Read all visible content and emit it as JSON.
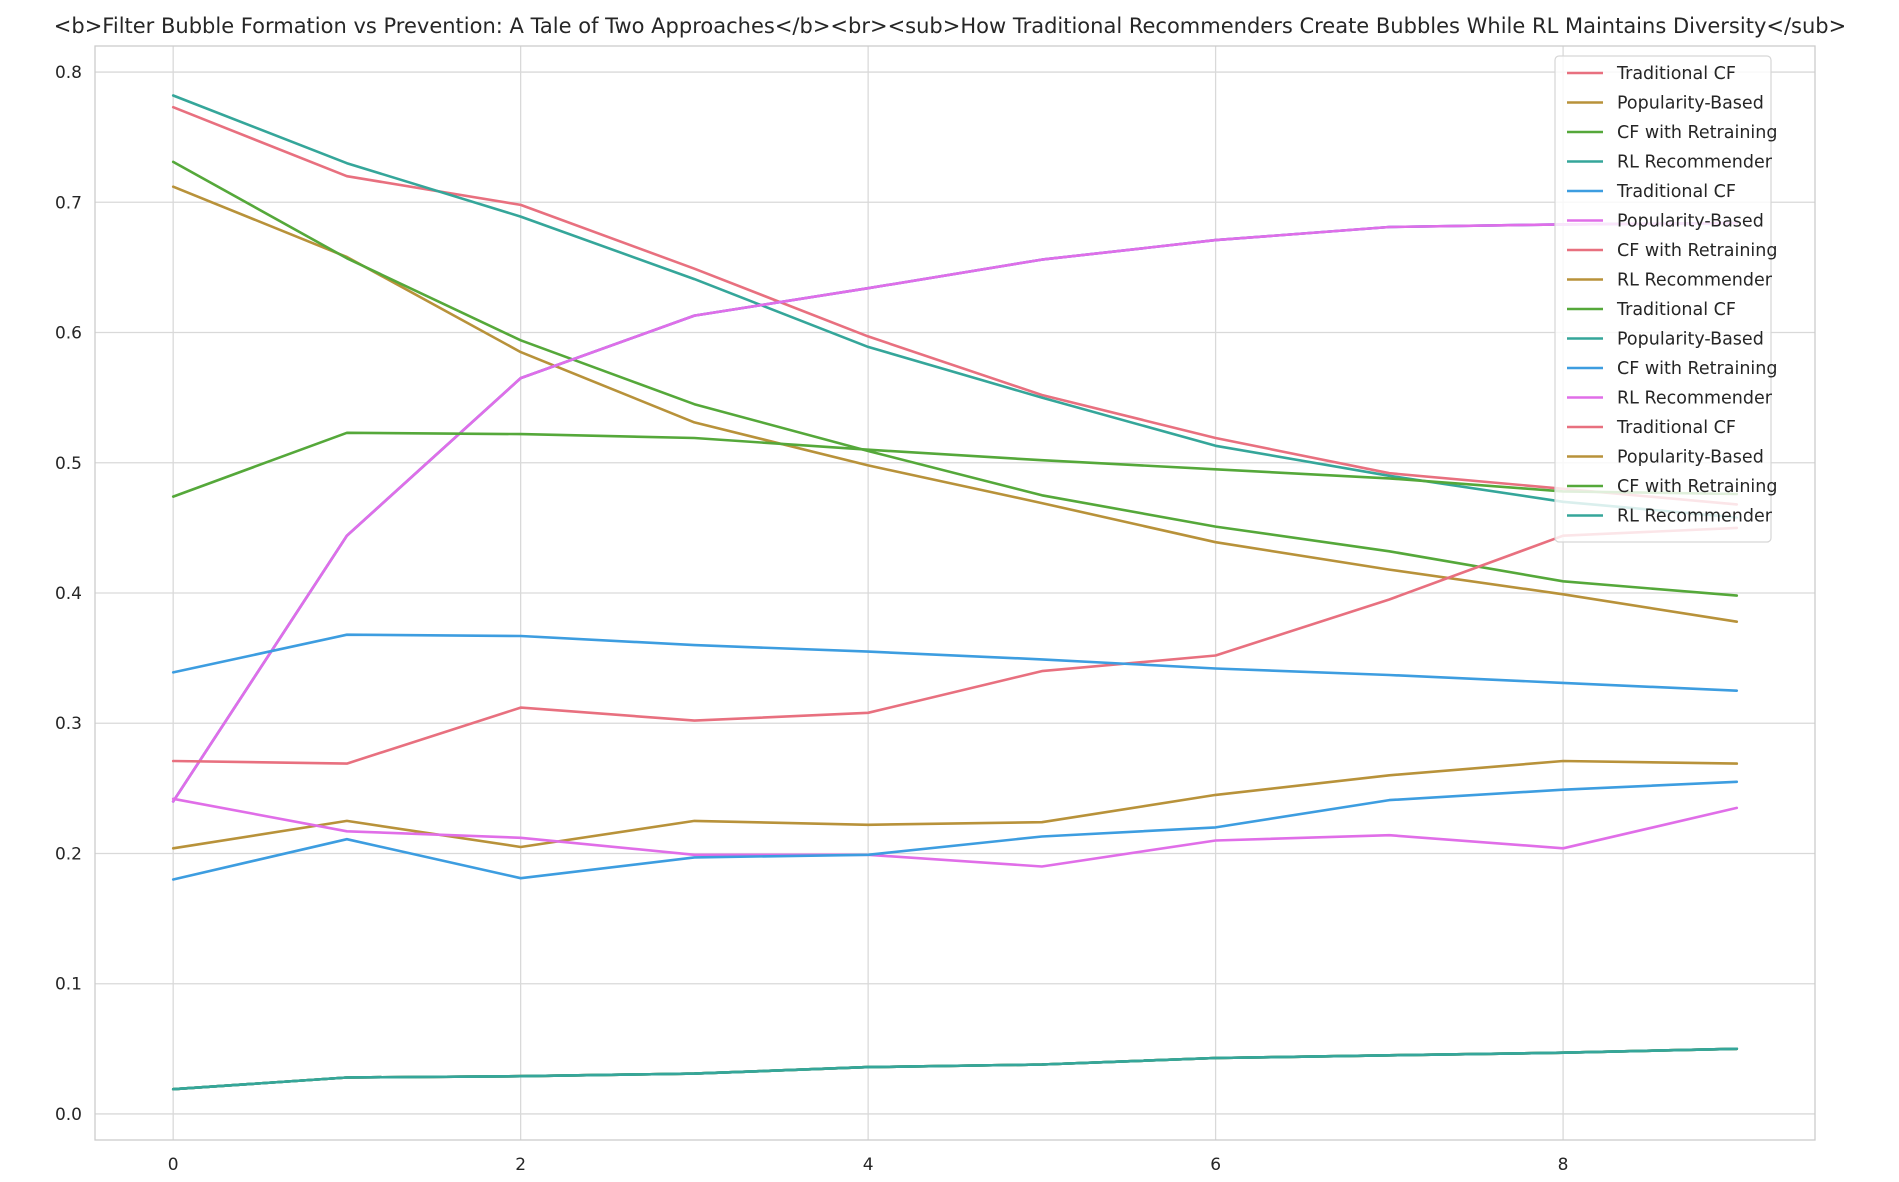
{
  "title": "<b>Filter Bubble Formation vs Prevention: A Tale of Two Approaches</b><br><sub>How Traditional Recommenders Create Bubbles While RL Maintains Diversity</sub>",
  "colors": {
    "red": "#e8707f",
    "olive": "#b8923a",
    "green": "#55a83a",
    "teal": "#35a69a",
    "blue": "#3d9de0",
    "magenta": "#e06ee8",
    "grid": "#d9d9d9",
    "frame": "#cccccc"
  },
  "chart_data": {
    "type": "line",
    "x": [
      0,
      1,
      2,
      3,
      4,
      5,
      6,
      7,
      8,
      9
    ],
    "xticks": [
      0,
      2,
      4,
      6,
      8
    ],
    "xtick_labels": [
      "0",
      "2",
      "4",
      "6",
      "8"
    ],
    "yticks": [
      0.0,
      0.1,
      0.2,
      0.3,
      0.4,
      0.5,
      0.6,
      0.7,
      0.8
    ],
    "ytick_labels": [
      "0.0",
      "0.1",
      "0.2",
      "0.3",
      "0.4",
      "0.5",
      "0.6",
      "0.7",
      "0.8"
    ],
    "xlim": [
      -0.45,
      9.45
    ],
    "ylim": [
      -0.02,
      0.82
    ],
    "grid": true,
    "legend_position": "top-right",
    "title": "<b>Filter Bubble Formation vs Prevention: A Tale of Two Approaches</b><br><sub>How Traditional Recommenders Create Bubbles While RL Maintains Diversity</sub>",
    "xlabel": "",
    "ylabel": "",
    "series": [
      {
        "name": "Traditional CF",
        "color": "red",
        "values": [
          0.773,
          0.72,
          0.698,
          0.649,
          0.597,
          0.552,
          0.519,
          0.492,
          0.48,
          0.468
        ]
      },
      {
        "name": "Popularity-Based",
        "color": "olive",
        "values": [
          0.712,
          0.658,
          0.585,
          0.531,
          0.498,
          0.469,
          0.439,
          0.418,
          0.399,
          0.378
        ]
      },
      {
        "name": "CF with Retraining",
        "color": "green",
        "values": [
          0.731,
          0.657,
          0.594,
          0.545,
          0.509,
          0.475,
          0.451,
          0.432,
          0.409,
          0.398
        ]
      },
      {
        "name": "RL Recommender",
        "color": "teal",
        "values": [
          0.782,
          0.73,
          0.689,
          0.641,
          0.589,
          0.55,
          0.513,
          0.49,
          0.47,
          0.458
        ]
      },
      {
        "name": "Traditional CF",
        "color": "blue",
        "values": [
          0.019,
          0.028,
          0.029,
          0.031,
          0.036,
          0.038,
          0.043,
          0.045,
          0.047,
          0.05
        ]
      },
      {
        "name": "Popularity-Based",
        "color": "magenta",
        "values": [
          0.24,
          0.444,
          0.565,
          0.613,
          0.634,
          0.656,
          0.671,
          0.681,
          0.683,
          0.684
        ]
      },
      {
        "name": "CF with Retraining",
        "color": "red",
        "values": [
          0.019,
          0.028,
          0.029,
          0.031,
          0.036,
          0.038,
          0.043,
          0.045,
          0.047,
          0.05
        ]
      },
      {
        "name": "RL Recommender",
        "color": "olive",
        "values": [
          0.019,
          0.028,
          0.029,
          0.031,
          0.036,
          0.038,
          0.043,
          0.045,
          0.047,
          0.05
        ]
      },
      {
        "name": "Traditional CF",
        "color": "green",
        "values": [
          0.019,
          0.028,
          0.029,
          0.031,
          0.036,
          0.038,
          0.043,
          0.045,
          0.047,
          0.05
        ]
      },
      {
        "name": "Popularity-Based",
        "color": "teal",
        "values": [
          0.019,
          0.028,
          0.029,
          0.031,
          0.036,
          0.038,
          0.043,
          0.045,
          0.047,
          0.05
        ]
      },
      {
        "name": "CF with Retraining",
        "color": "blue",
        "values": [
          0.24,
          0.444,
          0.565,
          0.613,
          0.634,
          0.656,
          0.671,
          0.681,
          0.683,
          0.684
        ]
      },
      {
        "name": "RL Recommender",
        "color": "magenta",
        "values": [
          0.24,
          0.444,
          0.565,
          0.613,
          0.634,
          0.656,
          0.671,
          0.681,
          0.683,
          0.684
        ]
      },
      {
        "name": "Traditional CF",
        "color": "red",
        "values": [
          0.271,
          0.269,
          0.312,
          0.302,
          0.308,
          0.34,
          0.352,
          0.395,
          0.444,
          0.45
        ]
      },
      {
        "name": "Popularity-Based",
        "color": "olive",
        "values": [
          0.204,
          0.225,
          0.205,
          0.225,
          0.222,
          0.224,
          0.245,
          0.26,
          0.271,
          0.269
        ]
      },
      {
        "name": "CF with Retraining",
        "color": "green",
        "values": [
          0.474,
          0.523,
          0.522,
          0.519,
          0.51,
          0.502,
          0.495,
          0.488,
          0.478,
          0.476
        ]
      },
      {
        "name": "RL Recommender",
        "color": "teal",
        "values": [
          0.019,
          0.028,
          0.029,
          0.031,
          0.036,
          0.038,
          0.043,
          0.045,
          0.047,
          0.05
        ]
      },
      {
        "name": "",
        "color": "blue",
        "values": [
          0.339,
          0.368,
          0.367,
          0.36,
          0.355,
          0.349,
          0.342,
          0.337,
          0.331,
          0.325
        ]
      },
      {
        "name": "",
        "color": "magenta",
        "values": [
          0.242,
          0.217,
          0.212,
          0.199,
          0.199,
          0.19,
          0.21,
          0.214,
          0.204,
          0.235
        ]
      },
      {
        "name": "",
        "color": "blue",
        "values": [
          0.18,
          0.211,
          0.181,
          0.197,
          0.199,
          0.213,
          0.22,
          0.241,
          0.249,
          0.255
        ]
      }
    ],
    "legend": [
      {
        "label": "Traditional CF",
        "color": "red"
      },
      {
        "label": "Popularity-Based",
        "color": "olive"
      },
      {
        "label": "CF with Retraining",
        "color": "green"
      },
      {
        "label": "RL Recommender",
        "color": "teal"
      },
      {
        "label": "Traditional CF",
        "color": "blue"
      },
      {
        "label": "Popularity-Based",
        "color": "magenta"
      },
      {
        "label": "CF with Retraining",
        "color": "red"
      },
      {
        "label": "RL Recommender",
        "color": "olive"
      },
      {
        "label": "Traditional CF",
        "color": "green"
      },
      {
        "label": "Popularity-Based",
        "color": "teal"
      },
      {
        "label": "CF with Retraining",
        "color": "blue"
      },
      {
        "label": "RL Recommender",
        "color": "magenta"
      },
      {
        "label": "Traditional CF",
        "color": "red"
      },
      {
        "label": "Popularity-Based",
        "color": "olive"
      },
      {
        "label": "CF with Retraining",
        "color": "green"
      },
      {
        "label": "RL Recommender",
        "color": "teal"
      }
    ]
  }
}
